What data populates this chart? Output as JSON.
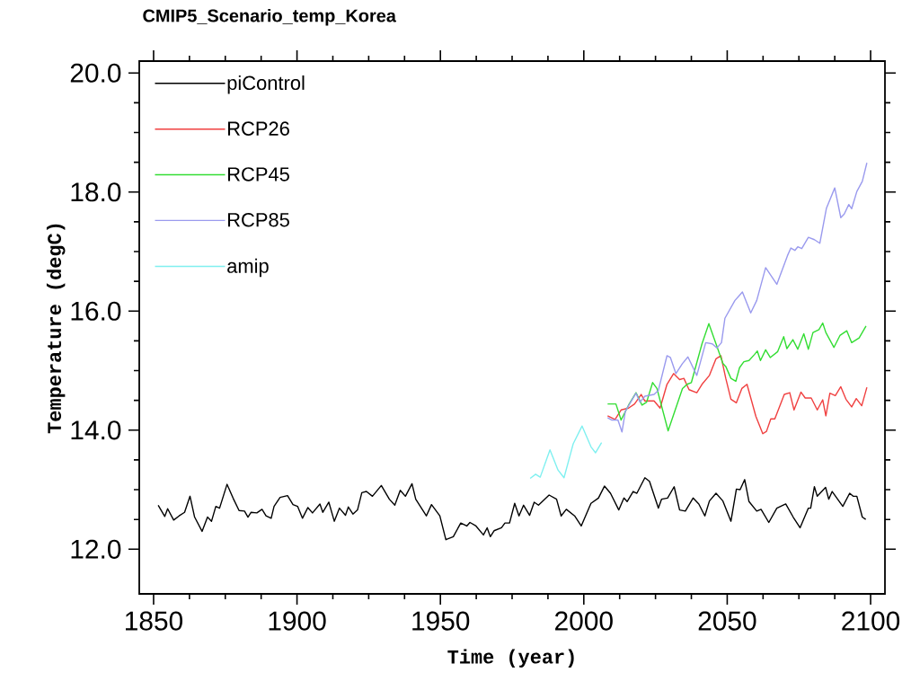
{
  "chart_data": {
    "type": "line",
    "title": "CMIP5_Scenario_temp_Korea",
    "xlabel": "Time (year)",
    "ylabel": "Temperature (degC)",
    "xlim": [
      1845,
      2105
    ],
    "ylim": [
      11.25,
      20.2
    ],
    "xticks": [
      1850,
      1900,
      1950,
      2000,
      2050,
      2100
    ],
    "yticks": [
      {
        "value": 12,
        "label": "12.0"
      },
      {
        "value": 14,
        "label": "14.0"
      },
      {
        "value": 16,
        "label": "16.0"
      },
      {
        "value": 18,
        "label": "18.0"
      },
      {
        "value": 20,
        "label": "20.0"
      }
    ],
    "legend": "top left",
    "marker": "none",
    "line_style": "solid",
    "series": [
      {
        "name": "piControl",
        "color": "#000000",
        "x": [
          1851.6,
          1853.9,
          1854.9,
          1857,
          1858.9,
          1860.8,
          1862.7,
          1864.3,
          1866.9,
          1868.8,
          1870.2,
          1871.7,
          1873,
          1875.6,
          1877.7,
          1879.8,
          1881.7,
          1882.9,
          1884,
          1886,
          1887.8,
          1889.2,
          1891,
          1892,
          1894.1,
          1896.7,
          1898.6,
          1900.2,
          1901.9,
          1903.8,
          1905.4,
          1908,
          1909,
          1911.1,
          1913,
          1914.8,
          1916.9,
          1917.9,
          1919.5,
          1921.1,
          1922.6,
          1924.2,
          1926.3,
          1929.4,
          1932.2,
          1934.1,
          1936,
          1937.8,
          1940.1,
          1941.4,
          1945.1,
          1946.9,
          1949.8,
          1951.9,
          1954.5,
          1957.1,
          1959.2,
          1960.3,
          1962.4,
          1965,
          1966.3,
          1967.4,
          1968.7,
          1971.3,
          1972.5,
          1974.1,
          1975.9,
          1977.4,
          1979,
          1981.1,
          1982.7,
          1984.2,
          1987.9,
          1990.5,
          1992.1,
          1993.9,
          1996.8,
          1999.1,
          2002.5,
          2005.1,
          2007.2,
          2009.3,
          2012.2,
          2014,
          2015.1,
          2017.2,
          2018.5,
          2021.3,
          2022.9,
          2026,
          2027.1,
          2029.2,
          2031.5,
          2033.4,
          2035.4,
          2038.1,
          2040.1,
          2042.2,
          2043.8,
          2046.1,
          2048.5,
          2051.3,
          2053.2,
          2054.5,
          2056.1,
          2057.6,
          2060.3,
          2061.8,
          2064.5,
          2067.3,
          2070.4,
          2073,
          2075.4,
          2078.3,
          2079.1,
          2080.4,
          2081.4,
          2084.3,
          2085.4,
          2086.6,
          2090.3,
          2092.7,
          2093.9,
          2095.2,
          2097.1,
          2098.3
        ],
        "values": [
          12.74,
          12.55,
          12.68,
          12.49,
          12.56,
          12.62,
          12.89,
          12.54,
          12.3,
          12.54,
          12.47,
          12.72,
          12.69,
          13.09,
          12.86,
          12.65,
          12.64,
          12.54,
          12.62,
          12.61,
          12.67,
          12.56,
          12.52,
          12.72,
          12.87,
          12.9,
          12.75,
          12.72,
          12.52,
          12.7,
          12.61,
          12.76,
          12.62,
          12.79,
          12.47,
          12.69,
          12.57,
          12.71,
          12.59,
          12.66,
          12.95,
          12.97,
          12.89,
          13.07,
          12.84,
          12.74,
          12.99,
          12.89,
          13.1,
          12.84,
          12.56,
          12.75,
          12.56,
          12.16,
          12.21,
          12.44,
          12.39,
          12.45,
          12.39,
          12.24,
          12.36,
          12.21,
          12.31,
          12.36,
          12.44,
          12.44,
          12.77,
          12.56,
          12.74,
          12.57,
          12.79,
          12.74,
          12.91,
          12.84,
          12.56,
          12.67,
          12.56,
          12.39,
          12.77,
          12.86,
          13.06,
          12.94,
          12.66,
          12.86,
          12.8,
          12.97,
          12.94,
          13.2,
          13.14,
          12.69,
          12.84,
          12.86,
          13.05,
          12.66,
          12.64,
          12.86,
          12.76,
          12.56,
          12.81,
          12.94,
          12.81,
          12.47,
          13.01,
          13.0,
          13.17,
          12.8,
          12.64,
          12.67,
          12.45,
          12.69,
          12.76,
          12.54,
          12.36,
          12.69,
          12.69,
          13.05,
          12.89,
          13.04,
          12.84,
          12.97,
          12.72,
          12.94,
          12.89,
          12.89,
          12.54,
          12.5
        ]
      },
      {
        "name": "RCP26",
        "color": "#f04040",
        "x": [
          2008.3,
          2010.9,
          2013,
          2015.6,
          2017.7,
          2020,
          2021.3,
          2024.5,
          2026.6,
          2029,
          2031.3,
          2033.4,
          2034.9,
          2036.7,
          2039.4,
          2041.2,
          2043.8,
          2046.1,
          2047.8,
          2049.5,
          2051.3,
          2053.2,
          2055.1,
          2056.9,
          2060,
          2062.4,
          2063.7,
          2065.2,
          2066.6,
          2069.9,
          2071.8,
          2073.3,
          2075.7,
          2077.2,
          2079.3,
          2081.4,
          2083.3,
          2084.4,
          2085.8,
          2087.7,
          2089.6,
          2091.4,
          2093.4,
          2095,
          2096.9,
          2098.7
        ],
        "values": [
          14.24,
          14.18,
          14.34,
          14.37,
          14.44,
          14.6,
          14.49,
          14.49,
          14.37,
          14.77,
          14.95,
          14.85,
          14.87,
          14.68,
          14.63,
          14.77,
          14.92,
          15.2,
          15.25,
          14.87,
          14.52,
          14.46,
          14.7,
          14.77,
          14.23,
          13.94,
          13.98,
          14.19,
          14.19,
          14.6,
          14.63,
          14.34,
          14.64,
          14.54,
          14.54,
          14.34,
          14.51,
          14.24,
          14.62,
          14.58,
          14.73,
          14.52,
          14.39,
          14.53,
          14.41,
          14.72
        ]
      },
      {
        "name": "RCP45",
        "color": "#33dd33",
        "x": [
          2008.3,
          2011.2,
          2013,
          2015.6,
          2018.2,
          2020.3,
          2021.9,
          2024,
          2025.5,
          2029.4,
          2034.4,
          2036,
          2037.5,
          2041.2,
          2043.6,
          2046.1,
          2048.5,
          2049.5,
          2051.3,
          2053,
          2054.3,
          2055.8,
          2057.6,
          2059.5,
          2060.5,
          2061.6,
          2063.4,
          2065,
          2067.6,
          2069.7,
          2070.8,
          2072.9,
          2074.6,
          2076.7,
          2078.3,
          2079.9,
          2082,
          2083.3,
          2084.4,
          2087.2,
          2089.3,
          2091.7,
          2093.4,
          2096,
          2098.4
        ],
        "values": [
          14.44,
          14.44,
          14.17,
          14.42,
          14.63,
          14.42,
          14.47,
          14.8,
          14.7,
          13.99,
          14.7,
          14.77,
          14.8,
          15.45,
          15.79,
          15.45,
          15.12,
          15.07,
          14.87,
          14.82,
          15.05,
          15.15,
          15.17,
          15.27,
          15.33,
          15.17,
          15.35,
          15.22,
          15.32,
          15.57,
          15.37,
          15.52,
          15.36,
          15.62,
          15.36,
          15.64,
          15.69,
          15.8,
          15.64,
          15.39,
          15.59,
          15.67,
          15.47,
          15.55,
          15.75
        ]
      },
      {
        "name": "RCP85",
        "color": "#9a9aee",
        "x": [
          2008.3,
          2009.8,
          2011.9,
          2013.3,
          2014.5,
          2018.2,
          2019.6,
          2021.3,
          2024.5,
          2026,
          2029,
          2030.2,
          2032.1,
          2034.4,
          2036.3,
          2039.4,
          2042.5,
          2044.8,
          2046.4,
          2048,
          2049.2,
          2052.7,
          2054,
          2055.3,
          2058.2,
          2060.3,
          2063.4,
          2067.3,
          2071,
          2072.2,
          2073.6,
          2074.6,
          2076,
          2078.3,
          2080.4,
          2082.3,
          2084.6,
          2087.5,
          2089.6,
          2090.8,
          2092.4,
          2093.4,
          2095.2,
          2097.1,
          2098.7
        ],
        "values": [
          14.21,
          14.17,
          14.17,
          13.97,
          14.32,
          14.62,
          14.47,
          14.57,
          14.6,
          14.67,
          15.25,
          15.22,
          14.95,
          15.12,
          15.23,
          14.92,
          15.47,
          15.45,
          15.38,
          15.47,
          15.88,
          16.18,
          16.25,
          16.32,
          15.97,
          16.18,
          16.73,
          16.45,
          16.93,
          17.06,
          17.02,
          17.08,
          17.05,
          17.24,
          17.2,
          17.14,
          17.73,
          18.07,
          17.57,
          17.63,
          17.79,
          17.72,
          18.01,
          18.18,
          18.49
        ]
      },
      {
        "name": "amip",
        "color": "#80f0f0",
        "x": [
          1981.3,
          1983.2,
          1984.8,
          1988.2,
          1991,
          1993.1,
          1996.3,
          1999.4,
          2002.5,
          2004.1,
          2006.2
        ],
        "values": [
          13.19,
          13.26,
          13.21,
          13.67,
          13.33,
          13.2,
          13.77,
          14.07,
          13.72,
          13.62,
          13.79
        ]
      }
    ]
  }
}
